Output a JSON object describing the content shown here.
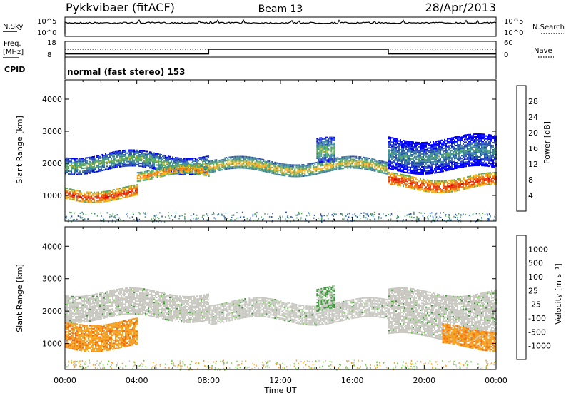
{
  "header": {
    "title": "Pykkvibaer (fitACF)",
    "beam": "Beam 13",
    "date": "28/Apr/2013"
  },
  "nsky_panel": {
    "left_label": "N.Sky",
    "left_ticks": [
      "10^5",
      "10^0"
    ],
    "right_label": "N.Search",
    "right_ticks": [
      "10^5",
      "10^0"
    ]
  },
  "freq_panel": {
    "left_label_1": "Freq.",
    "left_label_2": "[MHz]",
    "left_ticks": [
      "18",
      "8"
    ],
    "right_label": "Nave",
    "right_ticks": [
      "60",
      "0"
    ],
    "freq_steps": [
      {
        "start_hour": 0,
        "end_hour": 8,
        "mhz": 10.0
      },
      {
        "start_hour": 8,
        "end_hour": 18,
        "mhz": 13.0
      },
      {
        "start_hour": 18,
        "end_hour": 24,
        "mhz": 10.0
      }
    ]
  },
  "cpid_panel": {
    "label": "CPID",
    "text": "normal (fast stereo) 153"
  },
  "chart_data": [
    {
      "type": "heatmap",
      "ylabel": "Slant Range [km]",
      "y_ticks": [
        "1000",
        "2000",
        "3000",
        "4000"
      ],
      "y_tick_values": [
        1000,
        2000,
        3000,
        4000
      ],
      "ylim": [
        200,
        4600
      ],
      "xlim_hours": [
        0,
        24
      ],
      "colorbar": {
        "label": "Power [dB]",
        "ticks": [
          "4",
          "8",
          "12",
          "16",
          "20",
          "24",
          "28"
        ],
        "colors": [
          "#0000ff",
          "#2a4fb4",
          "#3d8a9a",
          "#5cab5c",
          "#f2b21a",
          "#f07a12",
          "#e83a10",
          "#e60000"
        ]
      },
      "bands": [
        {
          "start_hour": 0,
          "end_hour": 4,
          "range_km": [
            900,
            1250
          ],
          "power_db": 28
        },
        {
          "start_hour": 0,
          "end_hour": 8,
          "range_km": [
            1800,
            2300
          ],
          "power_db": 16
        },
        {
          "start_hour": 4,
          "end_hour": 8,
          "range_km": [
            1550,
            1850
          ],
          "power_db": 24
        },
        {
          "start_hour": 8,
          "end_hour": 18,
          "range_km": [
            1700,
            2100
          ],
          "power_db": 20
        },
        {
          "start_hour": 14,
          "end_hour": 15,
          "range_km": [
            1900,
            2700
          ],
          "power_db": 16
        },
        {
          "start_hour": 18,
          "end_hour": 24,
          "range_km": [
            1200,
            1600
          ],
          "power_db": 28
        },
        {
          "start_hour": 18,
          "end_hour": 24,
          "range_km": [
            1800,
            2800
          ],
          "power_db": 12
        }
      ]
    },
    {
      "type": "heatmap",
      "ylabel": "Slant Range [km]",
      "y_ticks": [
        "1000",
        "2000",
        "3000",
        "4000"
      ],
      "y_tick_values": [
        1000,
        2000,
        3000,
        4000
      ],
      "ylim": [
        200,
        4600
      ],
      "xlim_hours": [
        0,
        24
      ],
      "colorbar": {
        "label": "Velocity [m s⁻¹]",
        "ticks": [
          "1000",
          "500",
          "100",
          "25",
          "-25",
          "-100",
          "-500",
          "-1000"
        ],
        "colors": [
          "#1e3cc8",
          "#2e6e8a",
          "#3c9a3c",
          "#6ad23a",
          "#c8c8c0",
          "#f5a01e",
          "#f06e14",
          "#e83a10",
          "#e60000"
        ]
      },
      "bands": [
        {
          "start_hour": 0,
          "end_hour": 4,
          "range_km": [
            900,
            1700
          ],
          "velocity": -250
        },
        {
          "start_hour": 0,
          "end_hour": 8,
          "range_km": [
            1800,
            2600
          ],
          "velocity": 0
        },
        {
          "start_hour": 8,
          "end_hour": 18,
          "range_km": [
            1700,
            2300
          ],
          "velocity": 0
        },
        {
          "start_hour": 14,
          "end_hour": 15,
          "range_km": [
            2000,
            2700
          ],
          "velocity": 250
        },
        {
          "start_hour": 18,
          "end_hour": 24,
          "range_km": [
            1200,
            2600
          ],
          "velocity": 0
        },
        {
          "start_hour": 21,
          "end_hour": 24,
          "range_km": [
            900,
            1500
          ],
          "velocity": -250
        }
      ]
    }
  ],
  "x_axis": {
    "ticks": [
      "00:00",
      "04:00",
      "08:00",
      "12:00",
      "16:00",
      "20:00",
      "00:00"
    ],
    "label": "Time UT"
  }
}
